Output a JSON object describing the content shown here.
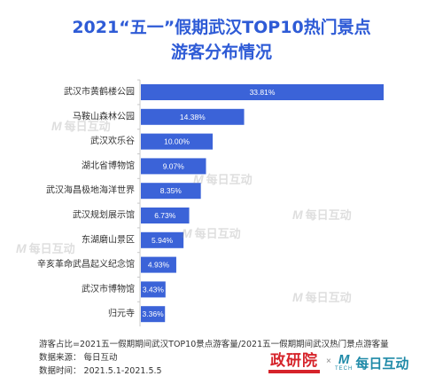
{
  "brand": {
    "logo_a_text": "政研院",
    "times_sign": "×",
    "logo_b_mark": "M",
    "logo_b_sub": "TECH",
    "logo_b_name": "每日互动",
    "watermark_mark": "M",
    "watermark_text": "每日互动"
  },
  "footer": {
    "footnote": "游客占比=2021五一假期期间武汉TOP10景点游客量/2021五一假期期间武汉热门景点游客量",
    "source": "数据来源：  每日互动",
    "period": "数据时间：  2021.5.1-2021.5.5"
  },
  "colors": {
    "title": "#2e5bd6",
    "bar": "#3b63d8",
    "axis": "#c8c8c8",
    "bar_label": "#ffffff"
  },
  "chart_data": {
    "type": "bar",
    "orientation": "horizontal",
    "title": "2021“五一”假期武汉TOP10热门景点",
    "subtitle": "游客分布情况",
    "categories": [
      "武汉市黄鹤楼公园",
      "马鞍山森林公园",
      "武汉欢乐谷",
      "湖北省博物馆",
      "武汉海昌极地海洋世界",
      "武汉规划展示馆",
      "东湖磨山景区",
      "辛亥革命武昌起义纪念馆",
      "武汉市博物馆",
      "归元寺"
    ],
    "values": [
      33.81,
      14.38,
      10.0,
      9.07,
      8.35,
      6.73,
      5.94,
      4.93,
      3.43,
      3.36
    ],
    "data_labels": [
      "33.81%",
      "14.38%",
      "10.00%",
      "9.07%",
      "8.35%",
      "6.73%",
      "5.94%",
      "4.93%",
      "3.43%",
      "3.36%"
    ],
    "xlim": [
      0,
      33.81
    ],
    "grid": false,
    "legend": "none"
  }
}
